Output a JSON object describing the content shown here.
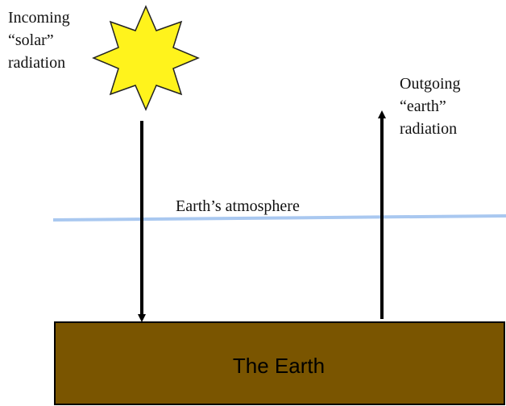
{
  "labels": {
    "incoming": [
      "Incoming",
      "“solar”",
      "radiation"
    ],
    "outgoing": [
      "Outgoing",
      "“earth”",
      "radiation"
    ],
    "atmosphere": "Earth’s atmosphere",
    "earth": "The Earth"
  }
}
